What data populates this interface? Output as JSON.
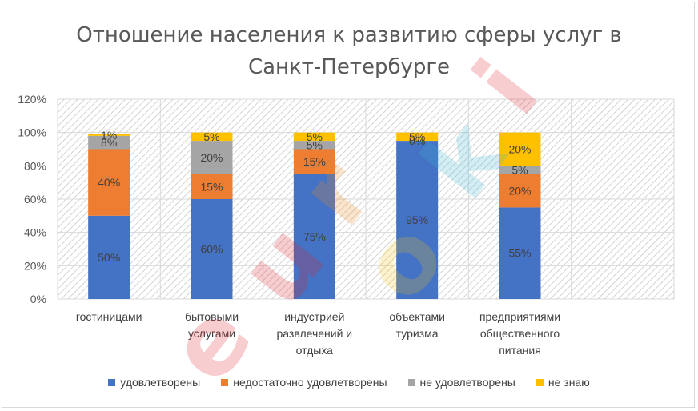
{
  "chart_data": {
    "type": "bar",
    "stacked": true,
    "title": "Отношение населения к развитию сферы услуг в Санкт-Петербурге",
    "title_lines": [
      "Отношение населения к развитию сферы услуг в",
      "Санкт-Петербурге"
    ],
    "categories": [
      [
        "гостиницами"
      ],
      [
        "бытовыми",
        "услугами"
      ],
      [
        "индустрией",
        "развлечений и",
        "отдыха"
      ],
      [
        "объектами",
        "туризма"
      ],
      [
        "предприятиями",
        "общественного",
        "питания"
      ],
      [
        ""
      ]
    ],
    "series": [
      {
        "name": "удовлетворены",
        "color": "#4472c4",
        "values": [
          50,
          60,
          75,
          95,
          55,
          null
        ],
        "labels": [
          "50%",
          "60%",
          "75%",
          "95%",
          "55%",
          ""
        ]
      },
      {
        "name": "недостаточно удовлетворены",
        "color": "#ed7d31",
        "values": [
          40,
          15,
          15,
          0,
          20,
          null
        ],
        "labels": [
          "40%",
          "15%",
          "15%",
          "0%",
          "20%",
          ""
        ]
      },
      {
        "name": "не удовлетворены",
        "color": "#a5a5a5",
        "values": [
          8,
          20,
          5,
          0,
          5,
          null
        ],
        "labels": [
          "8%",
          "20%",
          "5%",
          "",
          "5%",
          ""
        ]
      },
      {
        "name": "не знаю",
        "color": "#ffc000",
        "values": [
          1,
          5,
          5,
          5,
          20,
          null
        ],
        "labels": [
          "1%",
          "5%",
          "5%",
          "5%",
          "20%",
          ""
        ]
      }
    ],
    "ylim": [
      0,
      120
    ],
    "yticks": [
      "0%",
      "20%",
      "40%",
      "60%",
      "80%",
      "100%",
      "120%"
    ],
    "ytick_values": [
      0,
      20,
      40,
      60,
      80,
      100,
      120
    ],
    "xlabel": "",
    "ylabel": "",
    "grid": true,
    "legend": "bottom"
  },
  "watermark": {
    "letters": [
      "e",
      "u",
      "r",
      "o",
      "k",
      "i"
    ],
    "colors": [
      "#e0202a",
      "#e0202a",
      "#f08a1c",
      "#f5c518",
      "#3fb7d6",
      "#e0202a"
    ]
  }
}
